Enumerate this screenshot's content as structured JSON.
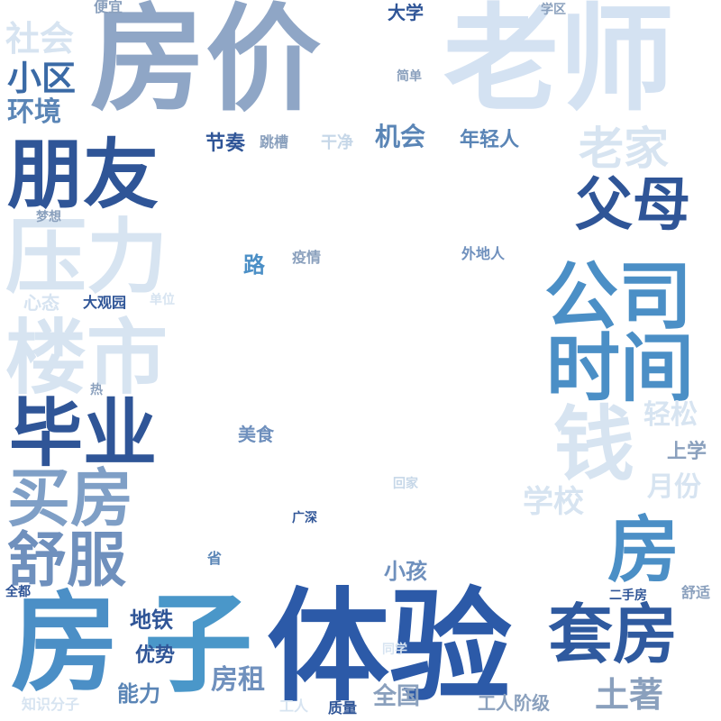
{
  "words": [
    {
      "text": "房价",
      "color": "#8fa6c6"
    },
    {
      "text": "老师",
      "color": "#d4e2f2"
    },
    {
      "text": "朋友",
      "color": "#2f5597"
    },
    {
      "text": "压力",
      "color": "#d7e4f1"
    },
    {
      "text": "楼市",
      "color": "#d7e4f1"
    },
    {
      "text": "毕业",
      "color": "#2f5597"
    },
    {
      "text": "买房",
      "color": "#7f9fc6"
    },
    {
      "text": "舒服",
      "color": "#6f90bd"
    },
    {
      "text": "房",
      "color": "#4b8fc6"
    },
    {
      "text": "子",
      "color": "#4a97c9"
    },
    {
      "text": "体验",
      "color": "#2c5aa8"
    },
    {
      "text": "套房",
      "color": "#2f5a9f"
    },
    {
      "text": "公司",
      "color": "#4b8fc6"
    },
    {
      "text": "时间",
      "color": "#4b8fc6"
    },
    {
      "text": "钱",
      "color": "#d7e4f1"
    },
    {
      "text": "房",
      "color": "#4b8fc6"
    },
    {
      "text": "父母",
      "color": "#2f5597"
    },
    {
      "text": "老家",
      "color": "#d7e4f1"
    },
    {
      "text": "社会",
      "color": "#d7e4f1"
    },
    {
      "text": "小区",
      "color": "#3a6aa6"
    },
    {
      "text": "环境",
      "color": "#5a85b6"
    },
    {
      "text": "便宜",
      "color": "#8aa0bd"
    },
    {
      "text": "大学",
      "color": "#2f5597"
    },
    {
      "text": "学区",
      "color": "#8aa0bd"
    },
    {
      "text": "简单",
      "color": "#8aa0bd"
    },
    {
      "text": "机会",
      "color": "#5a85b6"
    },
    {
      "text": "年轻人",
      "color": "#5a85b6"
    },
    {
      "text": "节奏",
      "color": "#2f5597"
    },
    {
      "text": "跳槽",
      "color": "#8aa0bd"
    },
    {
      "text": "干净",
      "color": "#c6d7e8"
    },
    {
      "text": "梦想",
      "color": "#8aa0bd"
    },
    {
      "text": "路",
      "color": "#4b8fc6"
    },
    {
      "text": "疫情",
      "color": "#8aa0bd"
    },
    {
      "text": "外地人",
      "color": "#6f90bd"
    },
    {
      "text": "心态",
      "color": "#d7e4f1"
    },
    {
      "text": "大观园",
      "color": "#2f5597"
    },
    {
      "text": "单位",
      "color": "#d7e4f1"
    },
    {
      "text": "热",
      "color": "#8aa0bd"
    },
    {
      "text": "美食",
      "color": "#6f90bd"
    },
    {
      "text": "轻松",
      "color": "#d7e4f1"
    },
    {
      "text": "上学",
      "color": "#8aa0bd"
    },
    {
      "text": "月份",
      "color": "#d7e4f1"
    },
    {
      "text": "学校",
      "color": "#d7e4f1"
    },
    {
      "text": "回家",
      "color": "#c6d7e8"
    },
    {
      "text": "广深",
      "color": "#2f5597"
    },
    {
      "text": "省",
      "color": "#5a85b6"
    },
    {
      "text": "小孩",
      "color": "#6f90bd"
    },
    {
      "text": "全都",
      "color": "#2f5597"
    },
    {
      "text": "地铁",
      "color": "#2f5597"
    },
    {
      "text": "优势",
      "color": "#2f5597"
    },
    {
      "text": "能力",
      "color": "#5a85b6"
    },
    {
      "text": "房租",
      "color": "#6f90bd"
    },
    {
      "text": "二手房",
      "color": "#2f5597"
    },
    {
      "text": "舒适",
      "color": "#8aa0bd"
    },
    {
      "text": "同学",
      "color": "#d7e4f1"
    },
    {
      "text": "知识分子",
      "color": "#d7e4f1"
    },
    {
      "text": "工人",
      "color": "#d7e4f1"
    },
    {
      "text": "质量",
      "color": "#2f5597"
    },
    {
      "text": "全国",
      "color": "#8aa0bd"
    },
    {
      "text": "工人阶级",
      "color": "#8aa0bd"
    },
    {
      "text": "土著",
      "color": "#8aa0bd"
    }
  ]
}
